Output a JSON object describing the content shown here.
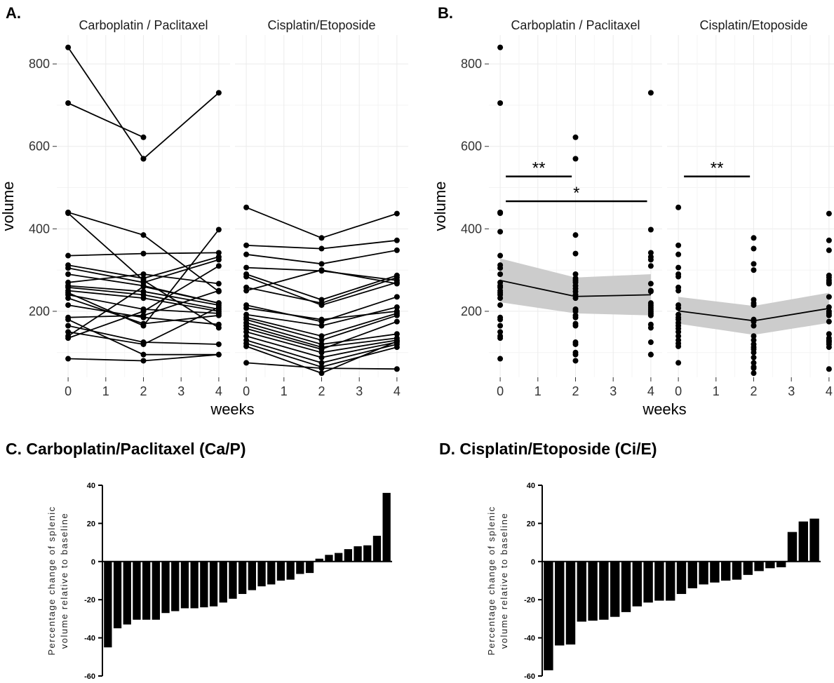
{
  "panels": {
    "a": "A.",
    "b": "B.",
    "c": "C. Carboplatin/Paclitaxel (Ca/P)",
    "d": "D. Cisplatin/Etoposide (Ci/E)"
  },
  "chart_data": [
    {
      "id": "A",
      "type": "line",
      "facets": [
        "Carboplatin / Paclitaxel",
        "Cisplatin/Etoposide"
      ],
      "xlabel": "weeks",
      "ylabel": "volume",
      "x_ticks": [
        "0",
        "1",
        "2",
        "3",
        "4"
      ],
      "y_ticks": [
        "200",
        "400",
        "600",
        "800"
      ],
      "xlim": [
        -0.3,
        4.3
      ],
      "ylim": [
        40,
        870
      ],
      "grid": true,
      "series": [
        [
          {
            "x": [
              0,
              2
            ],
            "values": [
              840,
              570
            ]
          },
          {
            "x": [
              2,
              4
            ],
            "values": [
              570,
              730
            ]
          },
          {
            "x": [
              0,
              2
            ],
            "values": [
              705,
              622
            ]
          },
          {
            "x": [
              0,
              2,
              4
            ],
            "values": [
              440,
              385,
              248
            ]
          },
          {
            "x": [
              0,
              2,
              4
            ],
            "values": [
              438,
              275,
              160
            ]
          },
          {
            "x": [
              0,
              2,
              4
            ],
            "values": [
              335,
              340,
              342
            ]
          },
          {
            "x": [
              0,
              2,
              4
            ],
            "values": [
              312,
              280,
              332
            ]
          },
          {
            "x": [
              0,
              2,
              4
            ],
            "values": [
              305,
              270,
              325
            ]
          },
          {
            "x": [
              0,
              2,
              4
            ],
            "values": [
              290,
              262,
              220
            ]
          },
          {
            "x": [
              0,
              2,
              4
            ],
            "values": [
              270,
              290,
              267
            ]
          },
          {
            "x": [
              0,
              2,
              4
            ],
            "values": [
              262,
              248,
              215
            ]
          },
          {
            "x": [
              0,
              2,
              4
            ],
            "values": [
              258,
              240,
              205
            ]
          },
          {
            "x": [
              0,
              2,
              4
            ],
            "values": [
              250,
              232,
              200
            ]
          },
          {
            "x": [
              0,
              2,
              4
            ],
            "values": [
              245,
              165,
              398
            ]
          },
          {
            "x": [
              0,
              2,
              4
            ],
            "values": [
              240,
              205,
              195
            ]
          },
          {
            "x": [
              0,
              2,
              4
            ],
            "values": [
              232,
              170,
              190
            ]
          },
          {
            "x": [
              0,
              2,
              4
            ],
            "values": [
              215,
              185,
              168
            ]
          },
          {
            "x": [
              0,
              2,
              4
            ],
            "values": [
              185,
              190,
              250
            ]
          },
          {
            "x": [
              0,
              2,
              4
            ],
            "values": [
              180,
              95,
              95
            ]
          },
          {
            "x": [
              0,
              2,
              4
            ],
            "values": [
              165,
              125,
              120
            ]
          },
          {
            "x": [
              0,
              2,
              4
            ],
            "values": [
              150,
              120,
              210
            ]
          },
          {
            "x": [
              0,
              2,
              4
            ],
            "values": [
              140,
              260,
              220
            ]
          },
          {
            "x": [
              0,
              2,
              4
            ],
            "values": [
              135,
              200,
              310
            ]
          },
          {
            "x": [
              0,
              2,
              4
            ],
            "values": [
              85,
              80,
              95
            ]
          }
        ],
        [
          {
            "x": [
              0,
              2,
              4
            ],
            "values": [
              452,
              378,
              437
            ]
          },
          {
            "x": [
              0,
              2,
              4
            ],
            "values": [
              360,
              352,
              372
            ]
          },
          {
            "x": [
              0,
              2,
              4
            ],
            "values": [
              338,
              315,
              348
            ]
          },
          {
            "x": [
              0,
              2,
              4
            ],
            "values": [
              306,
              298,
              275
            ]
          },
          {
            "x": [
              0,
              2,
              4
            ],
            "values": [
              290,
              228,
              287
            ]
          },
          {
            "x": [
              0,
              2,
              4
            ],
            "values": [
              284,
              215,
              270
            ]
          },
          {
            "x": [
              0,
              2,
              4
            ],
            "values": [
              258,
              220,
              282
            ]
          },
          {
            "x": [
              0,
              2,
              4
            ],
            "values": [
              250,
              300,
              267
            ]
          },
          {
            "x": [
              0,
              2,
              4
            ],
            "values": [
              215,
              175,
              235
            ]
          },
          {
            "x": [
              0,
              2,
              4
            ],
            "values": [
              208,
              180,
              200
            ]
          },
          {
            "x": [
              0,
              2,
              4
            ],
            "values": [
              192,
              165,
              210
            ]
          },
          {
            "x": [
              0,
              2,
              4
            ],
            "values": [
              185,
              140,
              195
            ]
          },
          {
            "x": [
              0,
              2,
              4
            ],
            "values": [
              180,
              130,
              190
            ]
          },
          {
            "x": [
              0,
              2,
              4
            ],
            "values": [
              172,
              120,
              145
            ]
          },
          {
            "x": [
              0,
              2,
              4
            ],
            "values": [
              165,
              113,
              135
            ]
          },
          {
            "x": [
              0,
              2,
              4
            ],
            "values": [
              158,
              108,
              175
            ]
          },
          {
            "x": [
              0,
              2,
              4
            ],
            "values": [
              150,
              100,
              130
            ]
          },
          {
            "x": [
              0,
              2,
              4
            ],
            "values": [
              140,
              88,
              125
            ]
          },
          {
            "x": [
              0,
              2,
              4
            ],
            "values": [
              130,
              75,
              120
            ]
          },
          {
            "x": [
              0,
              2,
              4
            ],
            "values": [
              122,
              65,
              113
            ]
          },
          {
            "x": [
              0,
              2,
              4
            ],
            "values": [
              115,
              50,
              127
            ]
          },
          {
            "x": [
              0,
              2,
              4
            ],
            "values": [
              75,
              62,
              60
            ]
          }
        ]
      ]
    },
    {
      "id": "B",
      "type": "scatter",
      "facets": [
        "Carboplatin / Paclitaxel",
        "Cisplatin/Etoposide"
      ],
      "xlabel": "weeks",
      "ylabel": "volume",
      "x_ticks": [
        "0",
        "1",
        "2",
        "3",
        "4"
      ],
      "y_ticks": [
        "200",
        "400",
        "600",
        "800"
      ],
      "xlim": [
        -0.3,
        4.3
      ],
      "ylim": [
        40,
        870
      ],
      "grid": true,
      "points": [
        [
          {
            "x": 0,
            "values": [
              840,
              705,
              440,
              438,
              393,
              335,
              312,
              305,
              290,
              270,
              262,
              258,
              250,
              245,
              240,
              232,
              215,
              185,
              180,
              165,
              150,
              140,
              135,
              85
            ]
          },
          {
            "x": 2,
            "values": [
              622,
              570,
              385,
              340,
              290,
              280,
              275,
              270,
              262,
              255,
              248,
              240,
              232,
              205,
              200,
              190,
              185,
              170,
              165,
              125,
              120,
              100,
              95,
              80
            ]
          },
          {
            "x": 4,
            "values": [
              730,
              398,
              342,
              332,
              325,
              310,
              267,
              250,
              248,
              220,
              215,
              210,
              205,
              200,
              195,
              190,
              168,
              160,
              125,
              95,
              95
            ]
          }
        ],
        [
          {
            "x": 0,
            "values": [
              452,
              360,
              338,
              306,
              290,
              284,
              258,
              250,
              215,
              208,
              192,
              185,
              180,
              172,
              165,
              158,
              150,
              140,
              130,
              122,
              115,
              75
            ]
          },
          {
            "x": 2,
            "values": [
              378,
              352,
              315,
              300,
              228,
              220,
              215,
              180,
              175,
              165,
              140,
              130,
              120,
              113,
              108,
              100,
              88,
              75,
              65,
              62,
              50
            ]
          },
          {
            "x": 4,
            "values": [
              437,
              372,
              348,
              287,
              282,
              275,
              270,
              267,
              235,
              210,
              200,
              195,
              190,
              175,
              145,
              135,
              130,
              127,
              125,
              120,
              113,
              60
            ]
          }
        ]
      ],
      "mean_lines": [
        {
          "x": [
            0,
            2,
            4
          ],
          "values": [
            275,
            236,
            240
          ],
          "lower": [
            222,
            195,
            190
          ],
          "upper": [
            328,
            282,
            290
          ]
        },
        {
          "x": [
            0,
            2,
            4
          ],
          "values": [
            201,
            177,
            207
          ],
          "lower": [
            170,
            143,
            172
          ],
          "upper": [
            235,
            213,
            245
          ]
        }
      ],
      "annotations": [
        {
          "facet": 0,
          "x": [
            0,
            1.9
          ],
          "y": 527,
          "text": "**"
        },
        {
          "facet": 0,
          "x": [
            0,
            3.9
          ],
          "y": 467,
          "text": "*"
        },
        {
          "facet": 1,
          "x": [
            0,
            1.9
          ],
          "y": 527,
          "text": "**"
        }
      ]
    },
    {
      "id": "C",
      "type": "bar",
      "ylabel": [
        "Percentage change of splenic",
        "volume relative to baseline"
      ],
      "y_ticks": [
        "40",
        "20",
        "0",
        "-20",
        "-40",
        "-60"
      ],
      "ylim": [
        -60,
        40
      ],
      "values": [
        -45,
        -35,
        -33,
        -30.5,
        -30.5,
        -30.5,
        -27,
        -26,
        -24.5,
        -24.5,
        -24,
        -23.5,
        -21.5,
        -19.5,
        -17,
        -15,
        -13,
        -12,
        -10,
        -9.5,
        -6.5,
        -6,
        1.5,
        3.5,
        4.5,
        6.5,
        8,
        8.5,
        13.5,
        36
      ]
    },
    {
      "id": "D",
      "type": "bar",
      "ylabel": [
        "Percentage change of splenic",
        "volume relative to baseline"
      ],
      "y_ticks": [
        "40",
        "20",
        "0",
        "-20",
        "-40",
        "-60"
      ],
      "ylim": [
        -60,
        40
      ],
      "values": [
        -57,
        -44,
        -43.5,
        -31.5,
        -31,
        -30.5,
        -29,
        -26.5,
        -23.5,
        -21.5,
        -20.5,
        -20.5,
        -17,
        -14,
        -12,
        -11,
        -10,
        -9.5,
        -7,
        -5,
        -3.5,
        -3,
        15.5,
        21,
        22.5
      ]
    }
  ]
}
